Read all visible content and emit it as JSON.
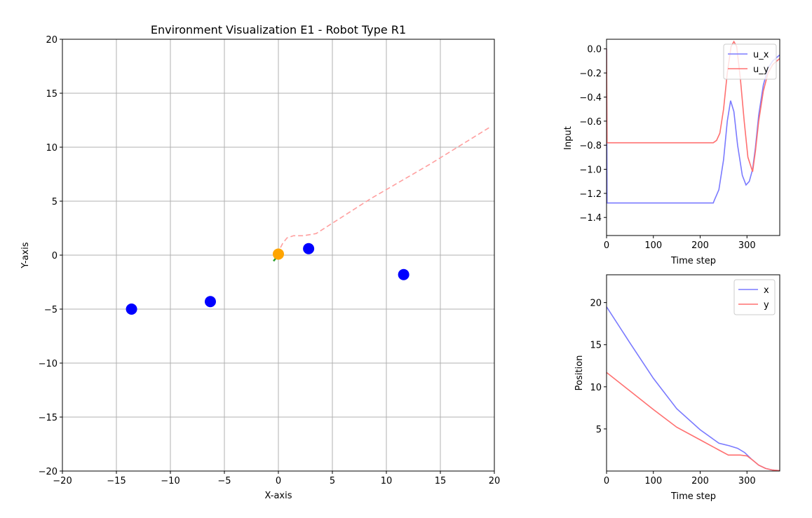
{
  "chart_data": [
    {
      "type": "scatter",
      "title": "Environment Visualization E1 - Robot Type R1",
      "xlabel": "X-axis",
      "ylabel": "Y-axis",
      "xlim": [
        -20,
        20
      ],
      "ylim": [
        -20,
        20
      ],
      "xticks": [
        -20,
        -15,
        -10,
        -5,
        0,
        5,
        10,
        15,
        20
      ],
      "yticks": [
        -20,
        -15,
        -10,
        -5,
        0,
        5,
        10,
        15,
        20
      ],
      "xtick_labels": [
        "−20",
        "−15",
        "−10",
        "−5",
        "0",
        "5",
        "10",
        "15",
        "20"
      ],
      "ytick_labels": [
        "−20",
        "−15",
        "−10",
        "−5",
        "0",
        "5",
        "10",
        "15",
        "20"
      ],
      "grid": true,
      "obstacles": {
        "color": "#0000ff",
        "points": [
          [
            -13.6,
            -5.0
          ],
          [
            -6.3,
            -4.3
          ],
          [
            2.8,
            0.6
          ],
          [
            11.6,
            -1.8
          ]
        ]
      },
      "robot": {
        "color": "#ffa500",
        "point": [
          0.0,
          0.1
        ]
      },
      "heading_arrow": {
        "color": "#2ca02c",
        "from": [
          0.0,
          0.0
        ],
        "to": [
          -0.45,
          -0.55
        ]
      },
      "trajectory": {
        "color": "#ff9f9f",
        "style": "dashed",
        "points": [
          [
            19.5,
            11.8
          ],
          [
            14.0,
            8.4
          ],
          [
            8.5,
            5.2
          ],
          [
            3.5,
            2.0
          ],
          [
            2.3,
            1.8
          ],
          [
            1.4,
            1.8
          ],
          [
            0.8,
            1.6
          ],
          [
            0.4,
            1.1
          ],
          [
            0.1,
            0.5
          ],
          [
            -0.1,
            0.1
          ]
        ]
      }
    },
    {
      "type": "line",
      "xlabel": "Time step",
      "ylabel": "Input",
      "xlim": [
        0,
        370
      ],
      "ylim": [
        -1.55,
        0.08
      ],
      "xticks": [
        0,
        100,
        200,
        300
      ],
      "yticks": [
        0.0,
        -0.2,
        -0.4,
        -0.6,
        -0.8,
        -1.0,
        -1.2,
        -1.4
      ],
      "xtick_labels": [
        "0",
        "100",
        "200",
        "300"
      ],
      "ytick_labels": [
        "0.0",
        "−0.2",
        "−0.4",
        "−0.6",
        "−0.8",
        "−1.0",
        "−1.2",
        "−1.4"
      ],
      "legend": "top-right",
      "series": [
        {
          "name": "u_x",
          "color": "#7a7aff",
          "points": [
            [
              0,
              0.0
            ],
            [
              1,
              -1.28
            ],
            [
              150,
              -1.28
            ],
            [
              228,
              -1.28
            ],
            [
              230,
              -1.26
            ],
            [
              240,
              -1.17
            ],
            [
              250,
              -0.92
            ],
            [
              258,
              -0.6
            ],
            [
              265,
              -0.43
            ],
            [
              272,
              -0.52
            ],
            [
              280,
              -0.8
            ],
            [
              290,
              -1.05
            ],
            [
              298,
              -1.13
            ],
            [
              305,
              -1.1
            ],
            [
              312,
              -1.0
            ],
            [
              318,
              -0.82
            ],
            [
              325,
              -0.55
            ],
            [
              335,
              -0.3
            ],
            [
              345,
              -0.16
            ],
            [
              355,
              -0.1
            ],
            [
              370,
              -0.05
            ]
          ]
        },
        {
          "name": "u_y",
          "color": "#ff7070",
          "points": [
            [
              0,
              0.0
            ],
            [
              1,
              -0.78
            ],
            [
              150,
              -0.78
            ],
            [
              228,
              -0.78
            ],
            [
              235,
              -0.76
            ],
            [
              242,
              -0.7
            ],
            [
              250,
              -0.5
            ],
            [
              258,
              -0.2
            ],
            [
              266,
              0.02
            ],
            [
              272,
              0.06
            ],
            [
              278,
              0.02
            ],
            [
              286,
              -0.25
            ],
            [
              294,
              -0.6
            ],
            [
              302,
              -0.9
            ],
            [
              312,
              -1.02
            ],
            [
              318,
              -0.85
            ],
            [
              325,
              -0.6
            ],
            [
              335,
              -0.35
            ],
            [
              345,
              -0.2
            ],
            [
              355,
              -0.13
            ],
            [
              370,
              -0.08
            ]
          ]
        }
      ]
    },
    {
      "type": "line",
      "xlabel": "Time step",
      "ylabel": "Position",
      "xlim": [
        0,
        370
      ],
      "ylim": [
        0,
        23.3
      ],
      "xticks": [
        0,
        100,
        200,
        300
      ],
      "yticks": [
        5,
        10,
        15,
        20
      ],
      "xtick_labels": [
        "0",
        "100",
        "200",
        "300"
      ],
      "ytick_labels": [
        "5",
        "10",
        "15",
        "20"
      ],
      "legend": "top-right",
      "series": [
        {
          "name": "x",
          "color": "#7a7aff",
          "points": [
            [
              0,
              19.5
            ],
            [
              50,
              15.2
            ],
            [
              100,
              11.0
            ],
            [
              150,
              7.4
            ],
            [
              200,
              4.9
            ],
            [
              240,
              3.3
            ],
            [
              262,
              3.0
            ],
            [
              280,
              2.7
            ],
            [
              295,
              2.2
            ],
            [
              310,
              1.4
            ],
            [
              325,
              0.7
            ],
            [
              340,
              0.3
            ],
            [
              355,
              0.12
            ],
            [
              370,
              0.05
            ]
          ]
        },
        {
          "name": "y",
          "color": "#ff7070",
          "points": [
            [
              0,
              11.7
            ],
            [
              50,
              9.5
            ],
            [
              100,
              7.3
            ],
            [
              150,
              5.2
            ],
            [
              200,
              3.7
            ],
            [
              240,
              2.5
            ],
            [
              260,
              1.9
            ],
            [
              285,
              1.9
            ],
            [
              300,
              1.8
            ],
            [
              312,
              1.3
            ],
            [
              325,
              0.7
            ],
            [
              340,
              0.3
            ],
            [
              355,
              0.12
            ],
            [
              370,
              0.05
            ]
          ]
        }
      ]
    }
  ]
}
